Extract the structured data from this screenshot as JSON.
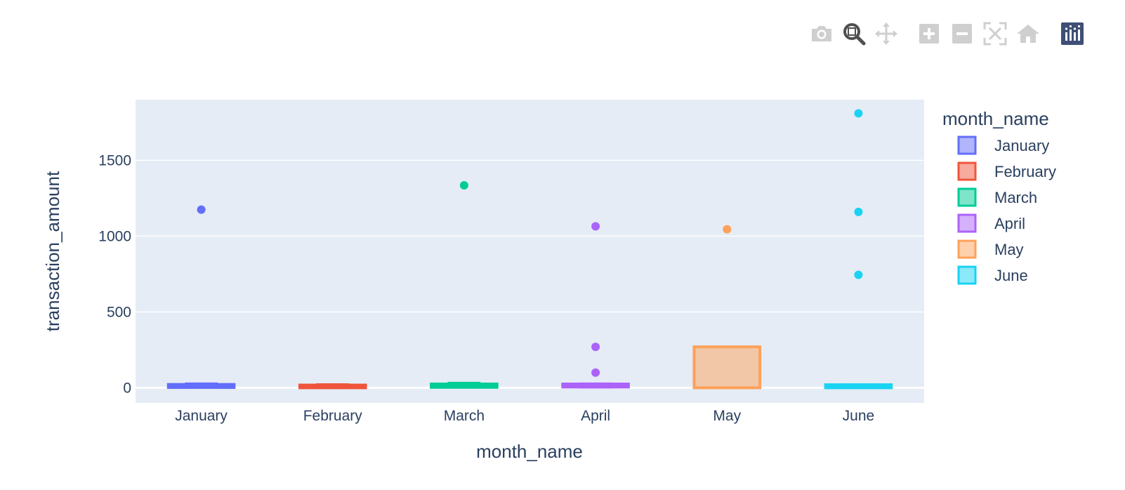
{
  "toolbar": {
    "buttons": [
      {
        "name": "camera-icon",
        "title": "Download plot as a png"
      },
      {
        "name": "zoom-icon",
        "title": "Zoom"
      },
      {
        "name": "pan-icon",
        "title": "Pan"
      },
      {
        "name": "zoom-in-icon",
        "title": "Zoom in"
      },
      {
        "name": "zoom-out-icon",
        "title": "Zoom out"
      },
      {
        "name": "autoscale-icon",
        "title": "Autoscale"
      },
      {
        "name": "reset-axes-icon",
        "title": "Reset axes"
      },
      {
        "name": "plotly-logo-icon",
        "title": "Produced with Plotly"
      }
    ]
  },
  "chart_data": {
    "type": "box",
    "xlabel": "month_name",
    "ylabel": "transaction_amount",
    "categories": [
      "January",
      "February",
      "March",
      "April",
      "May",
      "June"
    ],
    "ylim": [
      -100,
      1900
    ],
    "yticks": [
      0,
      500,
      1000,
      1500
    ],
    "ytick_labels": [
      "0",
      "500",
      "1000",
      "1500"
    ],
    "grid": true,
    "legend": {
      "title": "month_name",
      "placement": "right"
    },
    "series": [
      {
        "name": "January",
        "color": "#636efa",
        "q1": 2,
        "median": 10,
        "q3": 22,
        "lower_fence": 0,
        "upper_fence": 30,
        "outliers": [
          1175
        ]
      },
      {
        "name": "February",
        "color": "#EF553B",
        "q1": 0,
        "median": 10,
        "q3": 18,
        "lower_fence": 0,
        "upper_fence": 25,
        "outliers": []
      },
      {
        "name": "March",
        "color": "#00cc96",
        "q1": 3,
        "median": 12,
        "q3": 25,
        "lower_fence": 0,
        "upper_fence": 35,
        "outliers": [
          1335
        ]
      },
      {
        "name": "April",
        "color": "#ab63fa",
        "q1": 5,
        "median": 12,
        "q3": 25,
        "lower_fence": 0,
        "upper_fence": 30,
        "outliers": [
          100,
          270,
          1065
        ]
      },
      {
        "name": "May",
        "color": "#FFA15A",
        "q1": 0,
        "median": 2,
        "q3": 270,
        "lower_fence": 0,
        "upper_fence": 270,
        "outliers": [
          1045
        ]
      },
      {
        "name": "June",
        "color": "#19d3f3",
        "q1": 0,
        "median": 5,
        "q3": 20,
        "lower_fence": 0,
        "upper_fence": 25,
        "outliers": [
          745,
          1160,
          1810
        ]
      }
    ]
  }
}
